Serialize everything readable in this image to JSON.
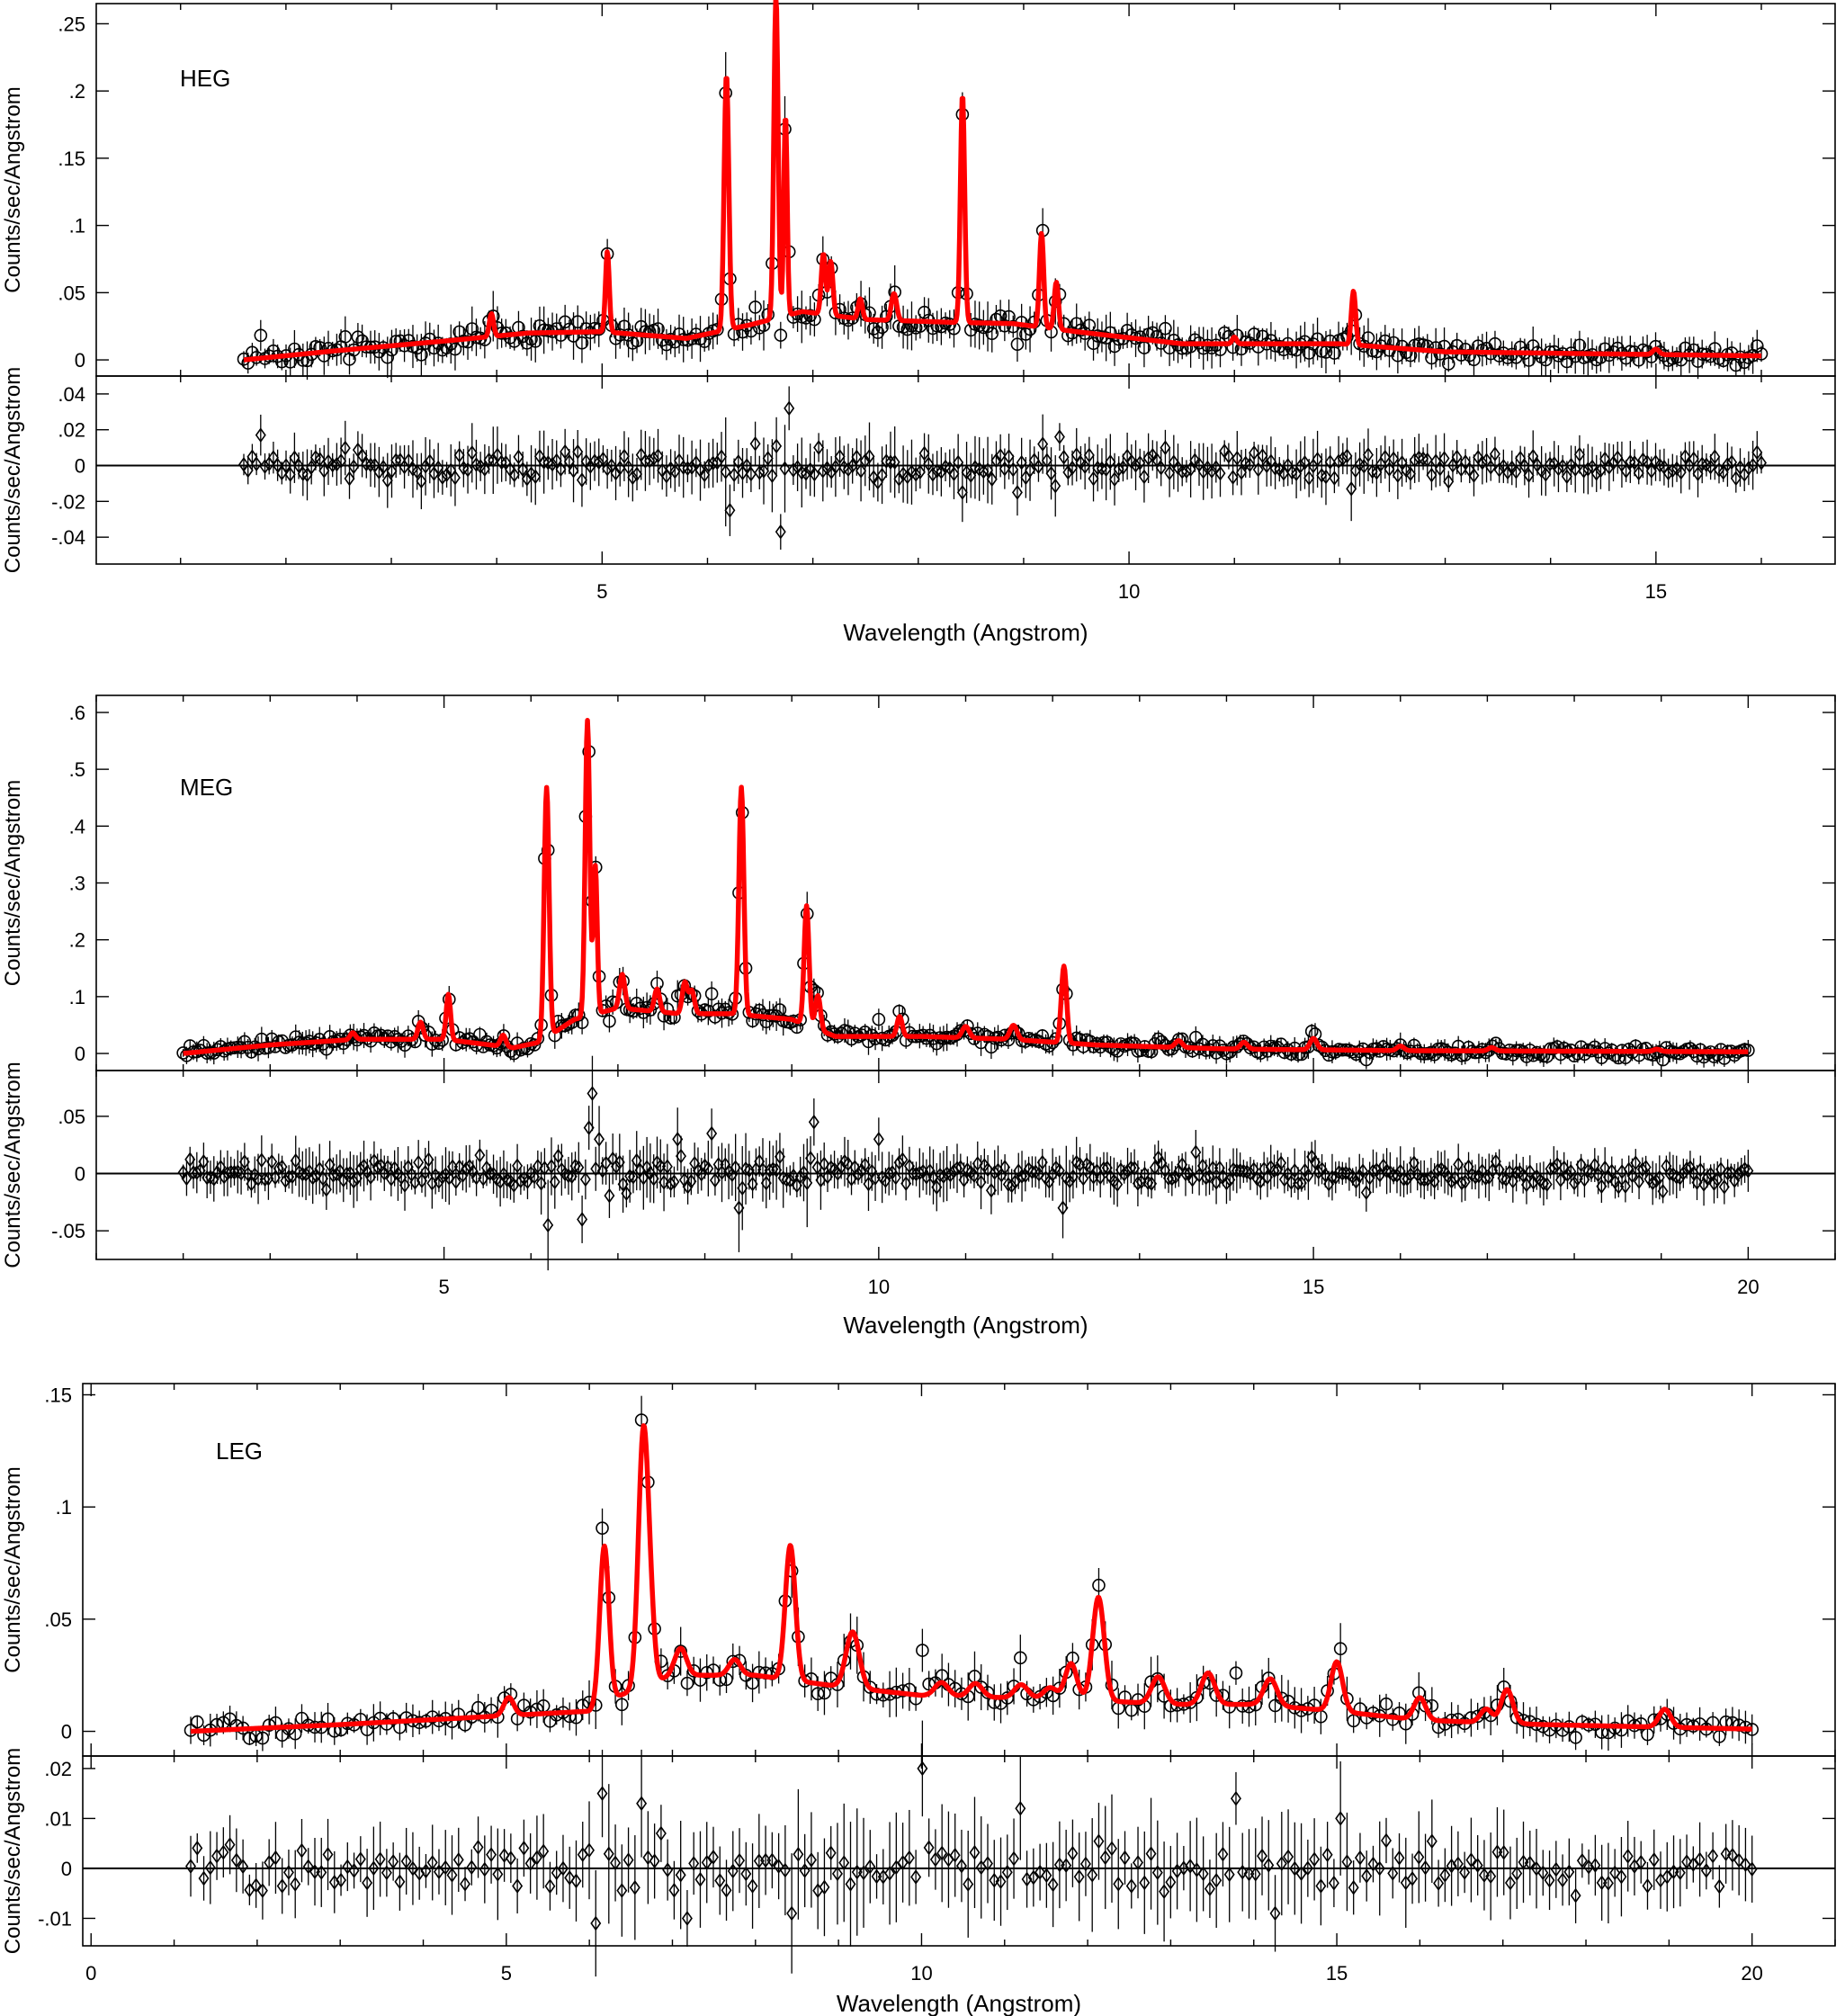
{
  "colors": {
    "model": "#ff0000",
    "data": "#000000",
    "axis": "#000000"
  },
  "chart_data": [
    {
      "type": "line",
      "panel_label": "HEG",
      "xlabel": "Wavelength (Angstrom)",
      "ylabel_top": "Counts/sec/Angstrom",
      "ylabel_bottom": "Counts/sec/Angstrom",
      "xlim": [
        0.2,
        16.7
      ],
      "xticks": [
        5,
        10,
        15
      ],
      "data_range": [
        1.6,
        16.0
      ],
      "ylim_top": [
        -0.012,
        0.265
      ],
      "yticks_top": [
        0,
        0.05,
        0.1,
        0.15,
        0.2,
        0.25
      ],
      "ylim_bottom": [
        -0.055,
        0.05
      ],
      "yticks_bottom": [
        -0.04,
        -0.02,
        0,
        0.02,
        0.04
      ],
      "continuum": [
        [
          1.6,
          0.0
        ],
        [
          2.5,
          0.007
        ],
        [
          3.5,
          0.014
        ],
        [
          4.3,
          0.02
        ],
        [
          5.0,
          0.021
        ],
        [
          5.8,
          0.016
        ],
        [
          6.4,
          0.026
        ],
        [
          6.9,
          0.036
        ],
        [
          7.5,
          0.03
        ],
        [
          8.3,
          0.028
        ],
        [
          8.9,
          0.027
        ],
        [
          9.5,
          0.021
        ],
        [
          10.5,
          0.012
        ],
        [
          12.0,
          0.012
        ],
        [
          13.0,
          0.006
        ],
        [
          16.0,
          0.003
        ]
      ],
      "lines": [
        [
          3.95,
          0.017,
          0.02
        ],
        [
          5.05,
          0.06,
          0.018
        ],
        [
          6.18,
          0.19,
          0.022
        ],
        [
          6.65,
          0.24,
          0.02
        ],
        [
          6.74,
          0.15,
          0.016
        ],
        [
          7.1,
          0.045,
          0.02
        ],
        [
          7.17,
          0.04,
          0.02
        ],
        [
          7.45,
          0.015,
          0.02
        ],
        [
          7.77,
          0.02,
          0.025
        ],
        [
          8.42,
          0.17,
          0.02
        ],
        [
          9.17,
          0.07,
          0.02
        ],
        [
          9.31,
          0.035,
          0.02
        ],
        [
          11.0,
          0.005,
          0.02
        ],
        [
          12.13,
          0.04,
          0.02
        ],
        [
          15.0,
          0.004,
          0.03
        ]
      ],
      "residual_amp": 0.006,
      "n_points": 360,
      "outliers": [
        [
          1.75,
          0.017
        ],
        [
          6.2,
          -0.025
        ],
        [
          6.7,
          -0.037
        ],
        [
          6.78,
          0.032
        ],
        [
          8.4,
          -0.015
        ],
        [
          9.35,
          0.016
        ],
        [
          9.2,
          0.012
        ],
        [
          12.1,
          -0.013
        ],
        [
          8.95,
          -0.015
        ]
      ]
    },
    {
      "type": "line",
      "panel_label": "MEG",
      "xlabel": "Wavelength (Angstrom)",
      "ylabel_top": "Counts/sec/Angstrom",
      "ylabel_bottom": "Counts/sec/Angstrom",
      "xlim": [
        1.0,
        21.0
      ],
      "xticks": [
        5,
        10,
        15,
        20
      ],
      "data_range": [
        2.0,
        20.0
      ],
      "ylim_top": [
        -0.03,
        0.63
      ],
      "yticks_top": [
        0,
        0.1,
        0.2,
        0.3,
        0.4,
        0.5,
        0.6
      ],
      "ylim_bottom": [
        -0.075,
        0.09
      ],
      "yticks_bottom": [
        -0.05,
        0,
        0.05
      ],
      "continuum": [
        [
          2.0,
          0.0
        ],
        [
          3.0,
          0.015
        ],
        [
          4.0,
          0.025
        ],
        [
          5.0,
          0.025
        ],
        [
          5.8,
          0.01
        ],
        [
          6.1,
          0.02
        ],
        [
          6.5,
          0.06
        ],
        [
          7.0,
          0.08
        ],
        [
          7.7,
          0.07
        ],
        [
          8.3,
          0.07
        ],
        [
          9.0,
          0.06
        ],
        [
          9.5,
          0.03
        ],
        [
          10.5,
          0.03
        ],
        [
          11.5,
          0.025
        ],
        [
          12.5,
          0.015
        ],
        [
          14.0,
          0.008
        ],
        [
          16.0,
          0.005
        ],
        [
          20.0,
          0.003
        ]
      ],
      "lines": [
        [
          3.95,
          0.012,
          0.03
        ],
        [
          4.73,
          0.03,
          0.03
        ],
        [
          5.05,
          0.08,
          0.025
        ],
        [
          5.68,
          0.02,
          0.03
        ],
        [
          6.18,
          0.44,
          0.028
        ],
        [
          6.65,
          0.52,
          0.026
        ],
        [
          6.74,
          0.26,
          0.022
        ],
        [
          7.05,
          0.06,
          0.03
        ],
        [
          7.45,
          0.04,
          0.03
        ],
        [
          7.77,
          0.055,
          0.03
        ],
        [
          7.85,
          0.04,
          0.03
        ],
        [
          8.42,
          0.4,
          0.028
        ],
        [
          9.17,
          0.21,
          0.028
        ],
        [
          9.3,
          0.06,
          0.03
        ],
        [
          10.24,
          0.035,
          0.03
        ],
        [
          11.0,
          0.02,
          0.04
        ],
        [
          11.55,
          0.025,
          0.04
        ],
        [
          12.13,
          0.135,
          0.03
        ],
        [
          13.45,
          0.012,
          0.04
        ],
        [
          14.2,
          0.012,
          0.04
        ],
        [
          15.0,
          0.02,
          0.04
        ],
        [
          16.0,
          0.008,
          0.04
        ],
        [
          17.05,
          0.006,
          0.04
        ],
        [
          18.95,
          0.004,
          0.04
        ]
      ],
      "residual_amp": 0.009,
      "n_points": 460,
      "outliers": [
        [
          6.7,
          0.07
        ],
        [
          6.65,
          0.04
        ],
        [
          6.2,
          -0.045
        ],
        [
          6.58,
          -0.04
        ],
        [
          8.4,
          -0.045
        ],
        [
          8.38,
          -0.03
        ],
        [
          9.27,
          0.045
        ],
        [
          7.7,
          0.03
        ],
        [
          8.08,
          0.035
        ],
        [
          12.12,
          -0.03
        ],
        [
          10.0,
          0.03
        ],
        [
          6.8,
          0.03
        ]
      ]
    },
    {
      "type": "line",
      "panel_label": "LEG",
      "xlabel": "Wavelength (Angstrom)",
      "ylabel_top": "Counts/sec/Angstrom",
      "ylabel_bottom": "Counts/sec/Angstrom",
      "xlim": [
        -0.1,
        21.0
      ],
      "xticks": [
        0,
        5,
        10,
        15,
        20
      ],
      "data_range": [
        1.2,
        20.0
      ],
      "ylim_top": [
        -0.011,
        0.155
      ],
      "yticks_top": [
        0,
        0.05,
        0.1,
        0.15
      ],
      "ylim_bottom": [
        -0.0155,
        0.0225
      ],
      "yticks_bottom": [
        -0.01,
        0,
        0.01,
        0.02
      ],
      "continuum": [
        [
          1.2,
          0.0
        ],
        [
          3.0,
          0.003
        ],
        [
          4.5,
          0.006
        ],
        [
          5.5,
          0.008
        ],
        [
          6.0,
          0.009
        ],
        [
          6.3,
          0.015
        ],
        [
          7.0,
          0.025
        ],
        [
          8.0,
          0.025
        ],
        [
          9.0,
          0.02
        ],
        [
          10.0,
          0.016
        ],
        [
          11.0,
          0.015
        ],
        [
          12.0,
          0.014
        ],
        [
          13.0,
          0.012
        ],
        [
          14.0,
          0.012
        ],
        [
          15.0,
          0.009
        ],
        [
          16.0,
          0.005
        ],
        [
          17.5,
          0.003
        ],
        [
          20.0,
          0.001
        ]
      ],
      "lines": [
        [
          5.03,
          0.008,
          0.06
        ],
        [
          6.18,
          0.07,
          0.055
        ],
        [
          6.65,
          0.112,
          0.06
        ],
        [
          6.74,
          0.02,
          0.05
        ],
        [
          7.1,
          0.012,
          0.07
        ],
        [
          7.75,
          0.007,
          0.07
        ],
        [
          8.42,
          0.06,
          0.06
        ],
        [
          9.17,
          0.025,
          0.08
        ],
        [
          10.24,
          0.006,
          0.08
        ],
        [
          10.65,
          0.006,
          0.08
        ],
        [
          11.2,
          0.006,
          0.08
        ],
        [
          11.55,
          0.005,
          0.08
        ],
        [
          11.8,
          0.016,
          0.07
        ],
        [
          12.13,
          0.046,
          0.07
        ],
        [
          12.85,
          0.012,
          0.08
        ],
        [
          13.45,
          0.014,
          0.08
        ],
        [
          14.2,
          0.012,
          0.08
        ],
        [
          15.0,
          0.022,
          0.07
        ],
        [
          16.0,
          0.01,
          0.07
        ],
        [
          16.8,
          0.006,
          0.07
        ],
        [
          17.05,
          0.015,
          0.07
        ],
        [
          18.95,
          0.008,
          0.07
        ]
      ],
      "residual_amp": 0.0035,
      "n_points": 240,
      "outliers": [
        [
          6.18,
          0.015
        ],
        [
          6.65,
          0.013
        ],
        [
          6.05,
          -0.011
        ],
        [
          8.4,
          -0.009
        ],
        [
          10.02,
          0.02
        ],
        [
          13.75,
          0.014
        ],
        [
          14.25,
          -0.009
        ],
        [
          7.2,
          -0.01
        ],
        [
          15.02,
          0.01
        ],
        [
          11.2,
          0.012
        ]
      ]
    }
  ]
}
